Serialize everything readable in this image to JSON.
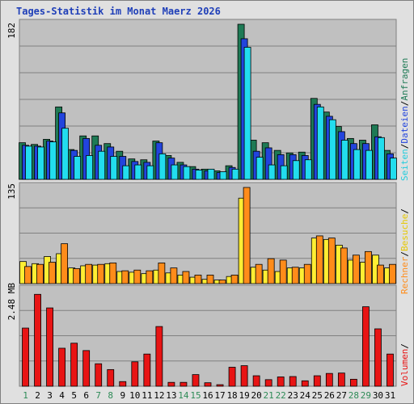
{
  "title": "Tages-Statistik im Monat Maerz 2026",
  "colors": {
    "panel_bg": "#c0c0c0",
    "frame_bg": "#e0e0e0",
    "border": "#808080",
    "grid": "#808080",
    "title": "#1f3fb8",
    "anfragen": "#1e7a55",
    "dateien": "#2244dd",
    "seiten": "#22ddee",
    "besuche": "#ffee33",
    "rechner": "#ff8c1a",
    "volumen": "#e81414",
    "day_weekday": "#000000",
    "day_weekend": "#2e8b57",
    "separator": "#000000"
  },
  "legend": {
    "anfragen": "Anfragen",
    "dateien": "Dateien",
    "seiten": "Seiten",
    "besuche": "Besuche",
    "rechner": "Rechner",
    "volumen": "Volumen",
    "sep": "/"
  },
  "chart_data": [
    {
      "type": "bar",
      "name": "top",
      "ymax_label": "182",
      "ylim": [
        0,
        182
      ],
      "x": [
        1,
        2,
        3,
        4,
        5,
        6,
        7,
        8,
        9,
        10,
        11,
        12,
        13,
        14,
        15,
        16,
        17,
        18,
        19,
        20,
        21,
        22,
        23,
        24,
        25,
        26,
        27,
        28,
        29,
        30,
        31
      ],
      "series": [
        {
          "name": "Anfragen",
          "values": [
            43,
            41,
            47,
            85,
            35,
            51,
            51,
            42,
            33,
            24,
            23,
            45,
            28,
            20,
            15,
            12,
            10,
            16,
            182,
            46,
            43,
            34,
            31,
            32,
            95,
            79,
            62,
            48,
            46,
            64,
            34
          ]
        },
        {
          "name": "Dateien",
          "values": [
            40,
            39,
            45,
            78,
            34,
            48,
            40,
            38,
            27,
            21,
            20,
            43,
            25,
            17,
            12,
            10,
            8,
            14,
            165,
            33,
            37,
            29,
            29,
            28,
            88,
            74,
            56,
            42,
            42,
            50,
            30
          ]
        },
        {
          "name": "Seiten",
          "values": [
            39,
            38,
            44,
            60,
            27,
            28,
            33,
            27,
            16,
            17,
            16,
            30,
            17,
            15,
            11,
            12,
            9,
            12,
            155,
            26,
            17,
            16,
            22,
            23,
            85,
            70,
            46,
            35,
            34,
            49,
            25
          ]
        }
      ]
    },
    {
      "type": "bar",
      "name": "middle",
      "ymax_label": "135",
      "ylim": [
        0,
        135
      ],
      "x": [
        1,
        2,
        3,
        4,
        5,
        6,
        7,
        8,
        9,
        10,
        11,
        12,
        13,
        14,
        15,
        16,
        17,
        18,
        19,
        20,
        21,
        22,
        23,
        24,
        25,
        26,
        27,
        28,
        29,
        30,
        31
      ],
      "series": [
        {
          "name": "Besuche",
          "values": [
            31,
            28,
            38,
            42,
            22,
            25,
            26,
            28,
            17,
            16,
            14,
            19,
            15,
            12,
            9,
            6,
            5,
            10,
            120,
            23,
            19,
            17,
            22,
            22,
            64,
            62,
            54,
            33,
            30,
            40,
            22
          ]
        },
        {
          "name": "Rechner",
          "values": [
            24,
            27,
            30,
            56,
            21,
            27,
            27,
            29,
            18,
            19,
            18,
            29,
            22,
            17,
            12,
            12,
            5,
            12,
            135,
            27,
            35,
            33,
            23,
            27,
            67,
            64,
            50,
            40,
            45,
            26,
            27
          ]
        }
      ]
    },
    {
      "type": "bar",
      "name": "bottom",
      "ymax_label": "2.48 MB",
      "ylim": [
        0,
        2.48
      ],
      "x": [
        1,
        2,
        3,
        4,
        5,
        6,
        7,
        8,
        9,
        10,
        11,
        12,
        13,
        14,
        15,
        16,
        17,
        18,
        19,
        20,
        21,
        22,
        23,
        24,
        25,
        26,
        27,
        28,
        29,
        30,
        31
      ],
      "series": [
        {
          "name": "Volumen",
          "values": [
            1.5,
            2.37,
            2.02,
            0.98,
            1.11,
            0.92,
            0.58,
            0.43,
            0.12,
            0.63,
            0.83,
            1.54,
            0.1,
            0.1,
            0.3,
            0.09,
            0.04,
            0.49,
            0.53,
            0.27,
            0.17,
            0.24,
            0.25,
            0.14,
            0.27,
            0.33,
            0.34,
            0.18,
            2.05,
            1.48,
            0.83
          ]
        }
      ]
    }
  ],
  "days": [
    {
      "label": "1",
      "weekend": true
    },
    {
      "label": "2",
      "weekend": false
    },
    {
      "label": "3",
      "weekend": false
    },
    {
      "label": "4",
      "weekend": false
    },
    {
      "label": "5",
      "weekend": false
    },
    {
      "label": "6",
      "weekend": false
    },
    {
      "label": "7",
      "weekend": true
    },
    {
      "label": "8",
      "weekend": true
    },
    {
      "label": "9",
      "weekend": false
    },
    {
      "label": "10",
      "weekend": false
    },
    {
      "label": "11",
      "weekend": false
    },
    {
      "label": "12",
      "weekend": false
    },
    {
      "label": "13",
      "weekend": false
    },
    {
      "label": "14",
      "weekend": true
    },
    {
      "label": "15",
      "weekend": true
    },
    {
      "label": "16",
      "weekend": false
    },
    {
      "label": "17",
      "weekend": false
    },
    {
      "label": "18",
      "weekend": false
    },
    {
      "label": "19",
      "weekend": false
    },
    {
      "label": "20",
      "weekend": false
    },
    {
      "label": "21",
      "weekend": true
    },
    {
      "label": "22",
      "weekend": true
    },
    {
      "label": "23",
      "weekend": false
    },
    {
      "label": "24",
      "weekend": false
    },
    {
      "label": "25",
      "weekend": false
    },
    {
      "label": "26",
      "weekend": false
    },
    {
      "label": "27",
      "weekend": false
    },
    {
      "label": "28",
      "weekend": true
    },
    {
      "label": "29",
      "weekend": true
    },
    {
      "label": "30",
      "weekend": false
    },
    {
      "label": "31",
      "weekend": false
    }
  ]
}
